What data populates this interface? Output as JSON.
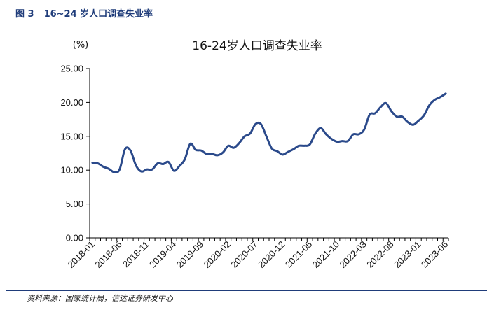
{
  "figure": {
    "number": "图 3",
    "caption": "16~24 岁人口调查失业率",
    "source": "资料来源：国家统计局，信达证券研发中心"
  },
  "chart_data": {
    "type": "line",
    "title": "16-24岁人口调查失业率",
    "unit": "(%)",
    "ylim": [
      0,
      25
    ],
    "y_ticks": [
      "0.00",
      "5.00",
      "10.00",
      "15.00",
      "20.00",
      "25.00"
    ],
    "x_tick_labels": [
      "2018-01",
      "2018-06",
      "2018-11",
      "2019-04",
      "2019-09",
      "2020-02",
      "2020-07",
      "2020-12",
      "2021-05",
      "2021-10",
      "2022-03",
      "2022-08",
      "2023-01",
      "2023-06"
    ],
    "grid": false,
    "legend": "none",
    "line_color": "#2b4a8b",
    "x": [
      "2018-01",
      "2018-02",
      "2018-03",
      "2018-04",
      "2018-05",
      "2018-06",
      "2018-07",
      "2018-08",
      "2018-09",
      "2018-10",
      "2018-11",
      "2018-12",
      "2019-01",
      "2019-02",
      "2019-03",
      "2019-04",
      "2019-05",
      "2019-06",
      "2019-07",
      "2019-08",
      "2019-09",
      "2019-10",
      "2019-11",
      "2019-12",
      "2020-01",
      "2020-02",
      "2020-03",
      "2020-04",
      "2020-05",
      "2020-06",
      "2020-07",
      "2020-08",
      "2020-09",
      "2020-10",
      "2020-11",
      "2020-12",
      "2021-01",
      "2021-02",
      "2021-03",
      "2021-04",
      "2021-05",
      "2021-06",
      "2021-07",
      "2021-08",
      "2021-09",
      "2021-10",
      "2021-11",
      "2021-12",
      "2022-01",
      "2022-02",
      "2022-03",
      "2022-04",
      "2022-05",
      "2022-06",
      "2022-07",
      "2022-08",
      "2022-09",
      "2022-10",
      "2022-11",
      "2022-12",
      "2023-01",
      "2023-02",
      "2023-03",
      "2023-04",
      "2023-05",
      "2023-06"
    ],
    "values": [
      11.1,
      11.0,
      10.5,
      10.2,
      9.7,
      10.1,
      13.1,
      12.9,
      10.7,
      9.8,
      10.1,
      10.1,
      11.0,
      10.9,
      11.2,
      9.9,
      10.6,
      11.6,
      13.9,
      13.0,
      12.9,
      12.4,
      12.4,
      12.2,
      12.6,
      13.6,
      13.3,
      14.0,
      15.0,
      15.4,
      16.8,
      16.8,
      15.0,
      13.2,
      12.8,
      12.3,
      12.7,
      13.1,
      13.6,
      13.6,
      13.8,
      15.4,
      16.2,
      15.3,
      14.6,
      14.2,
      14.3,
      14.3,
      15.3,
      15.3,
      16.0,
      18.2,
      18.4,
      19.3,
      19.9,
      18.7,
      17.9,
      17.9,
      17.1,
      16.7,
      17.3,
      18.1,
      19.6,
      20.4,
      20.8,
      21.3
    ]
  }
}
